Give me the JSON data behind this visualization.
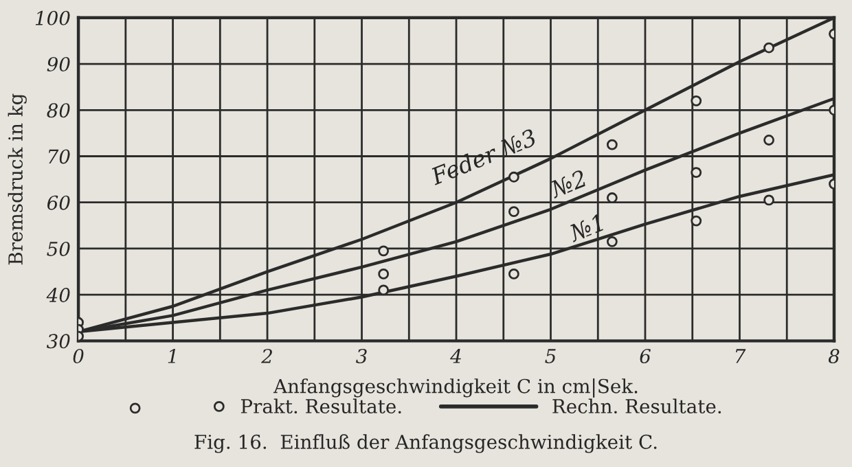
{
  "chart_data": {
    "type": "line",
    "xlabel": "Anfangsgeschwindigkeit C in cm|Sek.",
    "ylabel": "Bremsdruck in kg",
    "xlim": [
      0,
      8
    ],
    "ylim": [
      30,
      100
    ],
    "xticks": [
      0,
      {
        "value": 0.5,
        "label": null
      },
      1,
      {
        "value": 1.5,
        "label": null
      },
      2,
      {
        "value": 2.5,
        "label": null
      },
      3,
      {
        "value": 3.5,
        "label": null
      },
      4,
      {
        "value": 4.5,
        "label": null
      },
      5,
      {
        "value": 5.5,
        "label": null
      },
      6,
      {
        "value": 6.5,
        "label": null
      },
      7,
      {
        "value": 7.5,
        "label": null
      },
      8
    ],
    "yticks": [
      30,
      40,
      50,
      60,
      70,
      80,
      90,
      100
    ],
    "grid": true,
    "legend": "bottom",
    "series": [
      {
        "color": "#2b2b2b",
        "x": [
          0,
          1,
          2,
          3,
          4,
          5,
          6,
          7,
          8
        ],
        "values": [
          32,
          37.5,
          45,
          52,
          60,
          69.5,
          80,
          90.5,
          100
        ]
      },
      {
        "color": "#2b2b2b",
        "x": [
          0,
          1,
          2,
          3,
          4,
          5,
          6,
          7,
          8
        ],
        "values": [
          32,
          35.5,
          41,
          46,
          51.5,
          58.5,
          67,
          75,
          82.5
        ]
      },
      {
        "color": "#2b2b2b",
        "x": [
          0,
          1,
          2,
          3,
          4,
          5,
          6,
          7,
          8
        ],
        "values": [
          32,
          34,
          36,
          39.5,
          44,
          48.8,
          55.3,
          61.3,
          66
        ]
      },
      {
        "type": "scatter",
        "name": "Prakt. Resultate.",
        "color": "#2b2b2b",
        "marker": "circle",
        "x": [
          0,
          0,
          0,
          3.23,
          3.23,
          3.23,
          4.61,
          4.61,
          4.61,
          5.65,
          5.65,
          5.65,
          6.54,
          6.54,
          6.54,
          7.31,
          7.31,
          7.31,
          8,
          8,
          8
        ],
        "values": [
          34,
          32.5,
          31,
          49.5,
          44.5,
          41,
          65.5,
          58,
          44.5,
          72.5,
          61,
          51.5,
          82,
          66.5,
          56,
          93.5,
          73.5,
          60.5,
          96.5,
          80,
          64
        ]
      }
    ],
    "annotations": [
      {
        "text": "Feder №3",
        "x": 4.3,
        "y": 62.8
      },
      {
        "text": "№2",
        "x": 5.2,
        "y": 60
      },
      {
        "text": "№1",
        "x": 5.4,
        "y": 50.5
      },
      "Rechn. Resultate.",
      "Fig. 16.  Einfluß der Anfangsgeschwindigkeit C."
    ]
  }
}
